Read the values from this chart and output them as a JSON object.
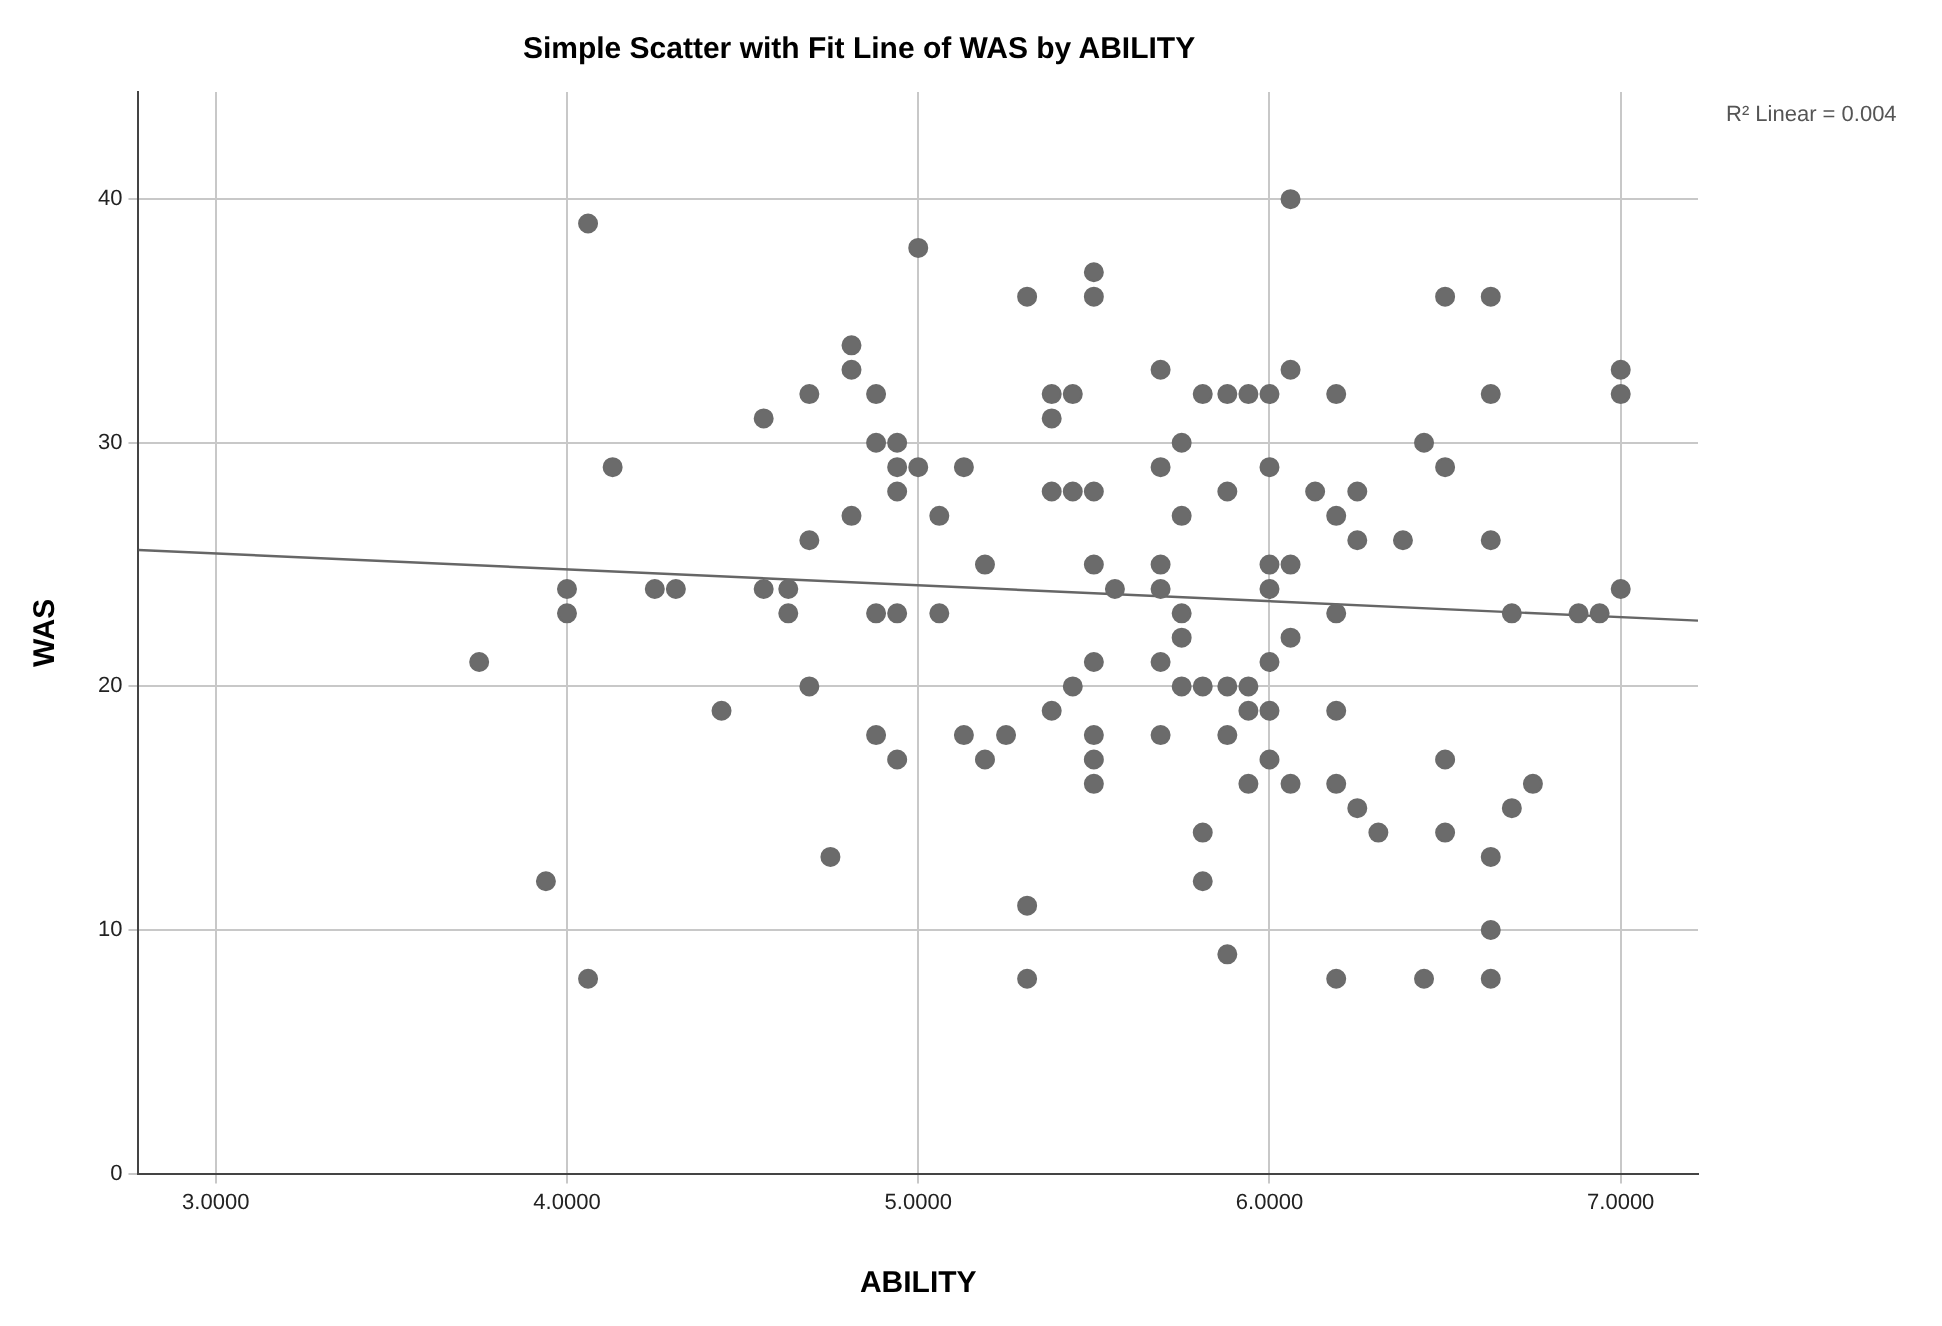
{
  "chart_data": {
    "type": "scatter",
    "title": "Simple Scatter with Fit Line of WAS by ABILITY",
    "xlabel": "ABILITY",
    "ylabel": "WAS",
    "annotations": [
      "R² Linear = 0.004"
    ],
    "xlim": [
      2.78,
      7.22
    ],
    "ylim": [
      0,
      44.4
    ],
    "xticks": [
      {
        "value": 3,
        "label": "3.0000"
      },
      {
        "value": 4,
        "label": "4.0000"
      },
      {
        "value": 5,
        "label": "5.0000"
      },
      {
        "value": 6,
        "label": "6.0000"
      },
      {
        "value": 7,
        "label": "7.0000"
      }
    ],
    "yticks": [
      0,
      10,
      20,
      30,
      40
    ],
    "grid": true,
    "marker": "circle",
    "series": [
      {
        "color": "#6b6b6b",
        "x": [
          3.75,
          3.94,
          4.0,
          4.0,
          4.06,
          4.06,
          4.13,
          4.25,
          4.31,
          4.44,
          4.56,
          4.56,
          4.63,
          4.63,
          4.69,
          4.69,
          4.69,
          4.75,
          4.81,
          4.81,
          4.81,
          4.88,
          4.88,
          4.88,
          4.88,
          4.94,
          4.94,
          4.94,
          4.94,
          4.94,
          5.0,
          5.0,
          5.06,
          5.06,
          5.13,
          5.13,
          5.19,
          5.19,
          5.25,
          5.31,
          5.31,
          5.31,
          5.38,
          5.38,
          5.38,
          5.38,
          5.44,
          5.44,
          5.44,
          5.5,
          5.5,
          5.5,
          5.5,
          5.5,
          5.5,
          5.5,
          5.5,
          5.56,
          5.69,
          5.69,
          5.69,
          5.69,
          5.69,
          5.69,
          5.75,
          5.75,
          5.75,
          5.75,
          5.75,
          5.81,
          5.81,
          5.81,
          5.81,
          5.88,
          5.88,
          5.88,
          5.88,
          5.88,
          5.94,
          5.94,
          5.94,
          5.94,
          6.0,
          6.0,
          6.0,
          6.0,
          6.0,
          6.0,
          6.0,
          6.06,
          6.06,
          6.06,
          6.06,
          6.06,
          6.13,
          6.19,
          6.19,
          6.19,
          6.19,
          6.19,
          6.19,
          6.25,
          6.25,
          6.25,
          6.31,
          6.38,
          6.44,
          6.44,
          6.5,
          6.5,
          6.5,
          6.5,
          6.63,
          6.63,
          6.63,
          6.63,
          6.63,
          6.63,
          6.69,
          6.69,
          6.75,
          6.88,
          6.94,
          7.0,
          7.0,
          7.0
        ],
        "values": [
          21,
          12,
          24,
          23,
          39,
          8,
          29,
          24,
          24,
          19,
          31,
          24,
          24,
          23,
          32,
          26,
          20,
          13,
          34,
          33,
          27,
          32,
          30,
          23,
          18,
          30,
          29,
          28,
          23,
          17,
          38,
          29,
          27,
          23,
          29,
          18,
          25,
          17,
          18,
          36,
          11,
          8,
          32,
          31,
          28,
          19,
          32,
          28,
          20,
          37,
          36,
          28,
          25,
          21,
          18,
          17,
          16,
          24,
          33,
          29,
          25,
          24,
          21,
          18,
          30,
          27,
          23,
          22,
          20,
          32,
          20,
          14,
          12,
          32,
          28,
          20,
          18,
          9,
          32,
          20,
          19,
          16,
          32,
          29,
          25,
          24,
          21,
          19,
          17,
          40,
          33,
          25,
          22,
          16,
          28,
          32,
          27,
          23,
          19,
          16,
          8,
          28,
          26,
          15,
          14,
          26,
          30,
          8,
          36,
          29,
          17,
          14,
          36,
          32,
          26,
          13,
          10,
          8,
          23,
          15,
          16,
          23,
          23,
          33,
          32,
          24
        ]
      },
      {
        "type": "line",
        "color": "#666666",
        "marker": "none",
        "line_style": "solid",
        "x": [
          2.78,
          7.22
        ],
        "values": [
          25.6,
          22.7
        ]
      }
    ]
  }
}
